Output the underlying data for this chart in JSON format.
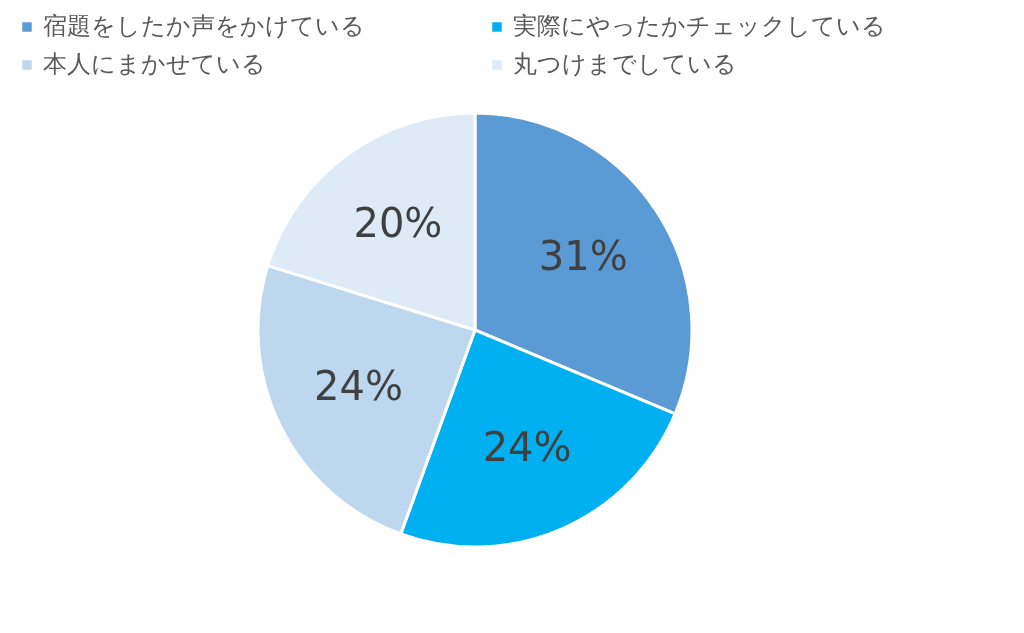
{
  "chart_data": {
    "type": "pie",
    "categories": [
      "宿題をしたか声をかけている",
      "実際にやったかチェックしている",
      "本人にまかせている",
      "丸つけまでしている"
    ],
    "values": [
      31,
      24,
      24,
      20
    ],
    "value_labels": [
      "31%",
      "24%",
      "24%",
      "20%"
    ],
    "colors": [
      "#5b9bd5",
      "#00b0f0",
      "#bdd7ee",
      "#deebf7"
    ],
    "legend": "top"
  }
}
